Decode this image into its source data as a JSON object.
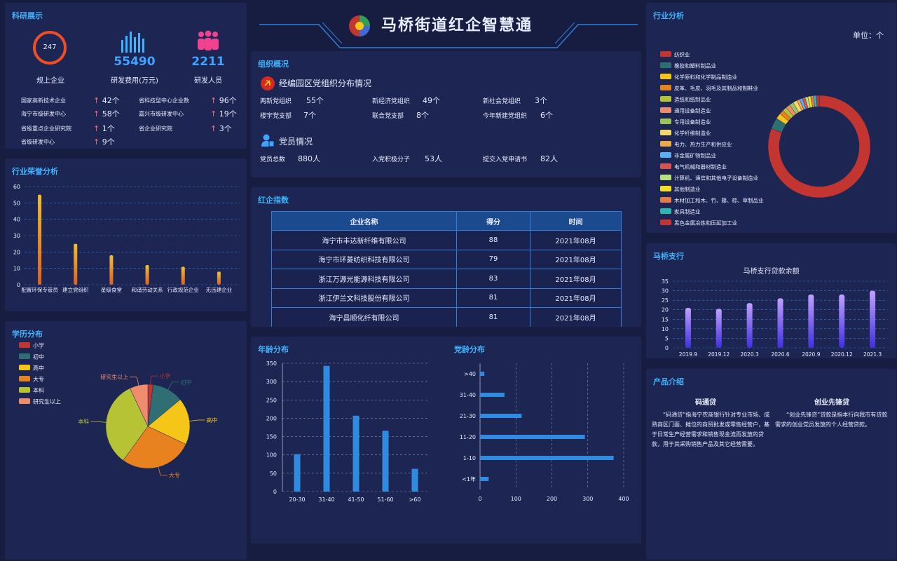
{
  "header": {
    "title": "马桥街道红企智慧通"
  },
  "research": {
    "title": "科研展示",
    "stats": [
      {
        "value": "247",
        "label": "规上企业"
      },
      {
        "value": "55490",
        "label": "研发费用(万元)"
      },
      {
        "value": "2211",
        "label": "研发人员"
      }
    ],
    "items": [
      {
        "label": "国家高新技术企业",
        "count": "42个"
      },
      {
        "label": "省科技型中心企业数",
        "count": "96个"
      },
      {
        "label": "海宁市级研发中心",
        "count": "58个"
      },
      {
        "label": "嘉兴市级研发中心",
        "count": "19个"
      },
      {
        "label": "省级重点企业研究院",
        "count": "1个"
      },
      {
        "label": "省企业研究院",
        "count": "3个"
      },
      {
        "label": "省级研发中心",
        "count": "9个"
      }
    ]
  },
  "honor": {
    "title": "行业荣誉分析",
    "chart_data": {
      "type": "bar",
      "categories": [
        "配置环保专管员",
        "建立党组织",
        "星级食堂",
        "和谐劳动关系",
        "行政规范企业",
        "无违建企业"
      ],
      "values": [
        55,
        25,
        18,
        12,
        11,
        8
      ],
      "ylim": [
        0,
        60
      ],
      "yticks": [
        "0",
        "10",
        "20",
        "30",
        "40",
        "50",
        "60"
      ]
    }
  },
  "education": {
    "title": "学历分布",
    "chart_data": {
      "type": "pie",
      "categories": [
        "小学",
        "初中",
        "高中",
        "大专",
        "本科",
        "研究生以上"
      ],
      "values": [
        2,
        12,
        18,
        28,
        33,
        7
      ],
      "colors": [
        "#c23531",
        "#2f6f73",
        "#f5c518",
        "#e8821e",
        "#b5c334",
        "#f08c6e"
      ]
    }
  },
  "org": {
    "title": "组织概况",
    "party_title": "经编园区党组织分布情况",
    "party_items": [
      {
        "label": "两新党组织",
        "value": "55个"
      },
      {
        "label": "新经济党组织",
        "value": "49个"
      },
      {
        "label": "新社会党组织",
        "value": "3个"
      },
      {
        "label": "楼宇党支部",
        "value": "7个"
      },
      {
        "label": "联合党支部",
        "value": "8个"
      },
      {
        "label": "今年新建党组织",
        "value": "6个"
      }
    ],
    "member_title": "党员情况",
    "member_items": [
      {
        "label": "党员总数",
        "value": "880人"
      },
      {
        "label": "入党积极分子",
        "value": "53人"
      },
      {
        "label": "提交入党申请书",
        "value": "82人"
      }
    ]
  },
  "redindex": {
    "title": "红企指数",
    "headers": [
      "企业名称",
      "得分",
      "时间"
    ],
    "rows": [
      [
        "海宁市丰达新纤维有限公司",
        "88",
        "2021年08月"
      ],
      [
        "海宁市环菱纺织科技有限公司",
        "79",
        "2021年08月"
      ],
      [
        "浙江万源光能源科技有限公司",
        "83",
        "2021年08月"
      ],
      [
        "浙江伊兰文科技股份有限公司",
        "81",
        "2021年08月"
      ],
      [
        "海宁昌顺化纤有限公司",
        "81",
        "2021年08月"
      ]
    ]
  },
  "age": {
    "title": "年龄分布",
    "chart_data": {
      "type": "bar",
      "categories": [
        "20-30",
        "31-40",
        "41-50",
        "51-60",
        ">60"
      ],
      "values": [
        102,
        343,
        207,
        166,
        62
      ],
      "ylim": [
        0,
        350
      ],
      "yticks": [
        "0",
        "50",
        "100",
        "150",
        "200",
        "250",
        "300",
        "350"
      ]
    }
  },
  "partyage": {
    "title": "党龄分布",
    "chart_data": {
      "type": "bar",
      "categories": [
        "<1年",
        "1-10",
        "11-20",
        "21-30",
        "31-40",
        ">40"
      ],
      "values": [
        24,
        372,
        292,
        116,
        68,
        12
      ],
      "xlim": [
        0,
        400
      ],
      "xticks": [
        "0",
        "100",
        "200",
        "300",
        "400"
      ]
    }
  },
  "industry": {
    "title": "行业分析",
    "unit": "单位：个",
    "chart_data": {
      "type": "pie",
      "categories": [
        "纺织业",
        "橡胶和塑料制品业",
        "化学原料和化学制品制造业",
        "皮革、毛皮、羽毛及其制品和制鞋业",
        "造纸和纸制品业",
        "通用设备制造业",
        "专用设备制造业",
        "化学纤维制造业",
        "电力、热力生产和供应业",
        "非金属矿物制品业",
        "电气机械和器材制造业",
        "计算机、通信和其他电子设备制造业",
        "其他制造业",
        "木材加工和木、竹、藤、棕、草制品业",
        "家具制造业",
        "黑色金属冶炼和压延加工业"
      ],
      "values": [
        180,
        8,
        4,
        3,
        3,
        3,
        3,
        3,
        2,
        2,
        2,
        2,
        2,
        2,
        2,
        2
      ],
      "colors": [
        "#c23531",
        "#2f6f73",
        "#f5c518",
        "#e8821e",
        "#b5c334",
        "#f08c6e",
        "#9ec35a",
        "#f5d76e",
        "#f0a848",
        "#5ab1ef",
        "#d9534f",
        "#b9e07a",
        "#f5e023",
        "#e87a4a",
        "#2bb7b3",
        "#c23531"
      ]
    }
  },
  "bank": {
    "title": "马桥支行",
    "chart_data": {
      "type": "bar",
      "title": "马桥支行贷款余额",
      "categories": [
        "2019.9",
        "2019.12",
        "2020.3",
        "2020.6",
        "2020.9",
        "2020.12",
        "2021.3"
      ],
      "values": [
        21,
        20.5,
        23.5,
        26,
        28,
        28,
        30
      ],
      "ylim": [
        0,
        35
      ],
      "yticks": [
        "0",
        "5",
        "10",
        "15",
        "20",
        "25",
        "30",
        "35"
      ]
    }
  },
  "product": {
    "title": "产品介绍",
    "items": [
      {
        "name": "码通贷",
        "desc": "“码通贷”指海宁农商银行针对专业市场、成熟商区门面、摊位的商贸批发或零售经营户，基于日常生产经营需求和销售现金流而发放的贷款，用于其采购销售产品及其它经营需要。"
      },
      {
        "name": "创业先锋贷",
        "desc": "“创业先锋贷”贷款是指本行向我市有贷款需求的创业党员发放的个人经营贷款。"
      }
    ]
  }
}
